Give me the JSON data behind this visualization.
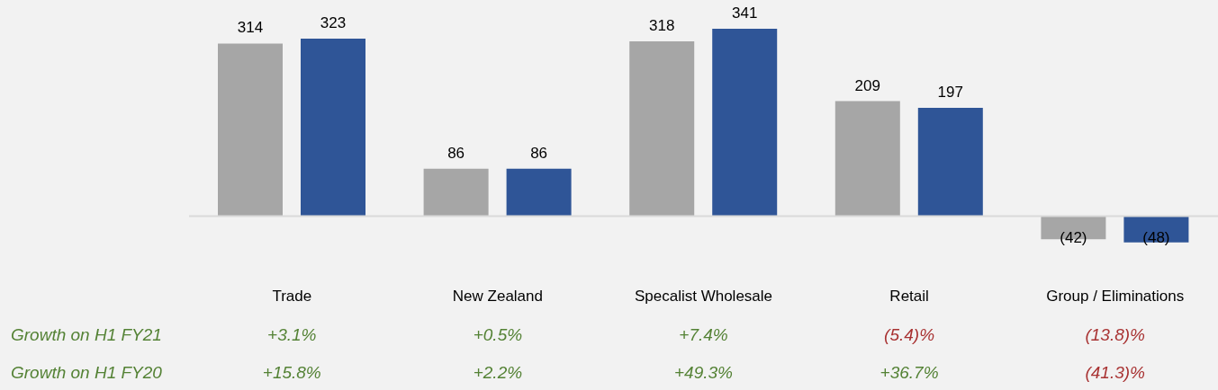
{
  "chart_data": {
    "type": "bar",
    "categories": [
      "Trade",
      "New Zealand",
      "Specalist Wholesale",
      "Retail",
      "Group / Eliminations"
    ],
    "series": [
      {
        "color": "#a6a6a6",
        "values": [
          314,
          86,
          318,
          209,
          -42
        ],
        "value_labels": [
          "314",
          "86",
          "318",
          "209",
          "(42)"
        ]
      },
      {
        "color": "#2f5597",
        "values": [
          323,
          86,
          341,
          197,
          -48
        ],
        "value_labels": [
          "323",
          "86",
          "341",
          "197",
          "(48)"
        ]
      }
    ],
    "annotations": [
      "Growth on H1 FY21",
      "+3.1%",
      "+0.5%",
      "+7.4%",
      "(5.4)%",
      "(13.8)%",
      "Growth on H1 FY20",
      "+15.8%",
      "+2.2%",
      "+49.3%",
      "+36.7%",
      "(41.3)%"
    ],
    "legend": false,
    "grid": false
  }
}
